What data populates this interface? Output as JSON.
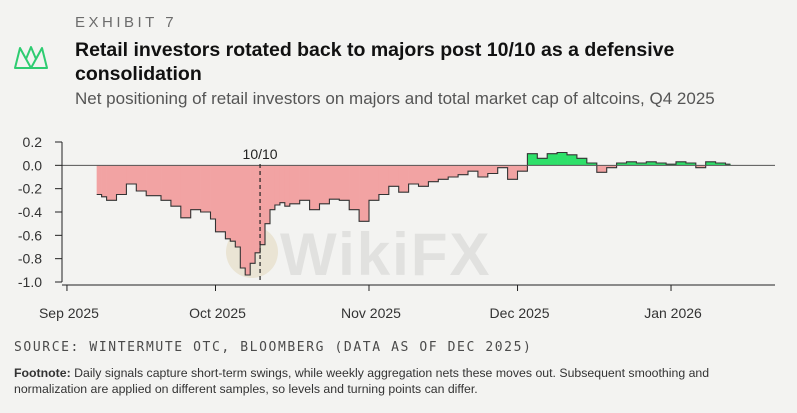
{
  "header": {
    "exhibit": "EXHIBIT 7",
    "title": "Retail investors rotated back to majors post 10/10 as a defensive consolidation",
    "subtitle": "Net positioning of retail investors on majors and total market cap of altcoins, Q4 2025"
  },
  "logo": {
    "icon": "wintermute-crown-icon",
    "color": "#2ecc71"
  },
  "watermark": "WikiFX",
  "source": "SOURCE: WINTERMUTE OTC, BLOOMBERG (DATA AS OF DEC 2025)",
  "footnote": {
    "label": "Footnote:",
    "text": " Daily signals capture short-term swings, while weekly aggregation nets these moves out. Subsequent smoothing and normalization are applied on different samples, so levels and turning points can differ."
  },
  "colors": {
    "negative_fill": "#f2a3a3",
    "negative_line": "#333333",
    "positive_fill": "#2ee06a",
    "baseline": "#555555"
  },
  "chart_data": {
    "type": "area",
    "ylim": [
      -1.0,
      0.2
    ],
    "yticks": [
      0.2,
      0.0,
      -0.2,
      -0.4,
      -0.6,
      -0.8,
      -1.0
    ],
    "ytick_labels": [
      "0.2",
      "0.0",
      "-0.2",
      "-0.4",
      "-0.6",
      "-0.8",
      "-1.0"
    ],
    "xlim": [
      "2025-08-31",
      "2026-01-22"
    ],
    "xticks": [
      "2025-09-01",
      "2025-10-01",
      "2025-11-01",
      "2025-12-01",
      "2026-01-01"
    ],
    "xtick_labels": [
      "Sep 2025",
      "Oct 2025",
      "Nov 2025",
      "Dec 2025",
      "Jan 2026"
    ],
    "annotation": {
      "label": "10/10",
      "x": "2025-10-10"
    },
    "step": true,
    "x": [
      "2025-09-07",
      "2025-09-08",
      "2025-09-09",
      "2025-09-11",
      "2025-09-13",
      "2025-09-15",
      "2025-09-17",
      "2025-09-20",
      "2025-09-22",
      "2025-09-24",
      "2025-09-26",
      "2025-09-28",
      "2025-09-30",
      "2025-10-01",
      "2025-10-03",
      "2025-10-04",
      "2025-10-05",
      "2025-10-06",
      "2025-10-07",
      "2025-10-08",
      "2025-10-09",
      "2025-10-10",
      "2025-10-11",
      "2025-10-12",
      "2025-10-13",
      "2025-10-14",
      "2025-10-15",
      "2025-10-16",
      "2025-10-18",
      "2025-10-20",
      "2025-10-22",
      "2025-10-24",
      "2025-10-26",
      "2025-10-28",
      "2025-10-30",
      "2025-11-01",
      "2025-11-03",
      "2025-11-05",
      "2025-11-07",
      "2025-11-09",
      "2025-11-11",
      "2025-11-13",
      "2025-11-15",
      "2025-11-17",
      "2025-11-19",
      "2025-11-21",
      "2025-11-23",
      "2025-11-25",
      "2025-11-27",
      "2025-11-29",
      "2025-12-01",
      "2025-12-03",
      "2025-12-05",
      "2025-12-07",
      "2025-12-09",
      "2025-12-11",
      "2025-12-13",
      "2025-12-15",
      "2025-12-17",
      "2025-12-19",
      "2025-12-21",
      "2025-12-23",
      "2025-12-25",
      "2025-12-27",
      "2025-12-29",
      "2025-12-31",
      "2026-01-02",
      "2026-01-04",
      "2026-01-06",
      "2026-01-08",
      "2026-01-10",
      "2026-01-12"
    ],
    "values": [
      -0.25,
      -0.27,
      -0.3,
      -0.25,
      -0.16,
      -0.22,
      -0.26,
      -0.3,
      -0.35,
      -0.45,
      -0.38,
      -0.4,
      -0.46,
      -0.57,
      -0.63,
      -0.65,
      -0.7,
      -0.88,
      -0.94,
      -0.84,
      -0.75,
      -0.68,
      -0.5,
      -0.38,
      -0.34,
      -0.32,
      -0.35,
      -0.33,
      -0.3,
      -0.38,
      -0.33,
      -0.29,
      -0.3,
      -0.38,
      -0.48,
      -0.3,
      -0.25,
      -0.18,
      -0.23,
      -0.16,
      -0.18,
      -0.14,
      -0.12,
      -0.1,
      -0.08,
      -0.05,
      -0.1,
      -0.07,
      -0.02,
      -0.12,
      -0.05,
      0.1,
      0.06,
      0.1,
      0.11,
      0.09,
      0.06,
      0.02,
      -0.06,
      -0.02,
      0.02,
      0.03,
      0.02,
      0.03,
      0.02,
      0.01,
      0.03,
      0.02,
      -0.02,
      0.03,
      0.02,
      0.01
    ]
  }
}
